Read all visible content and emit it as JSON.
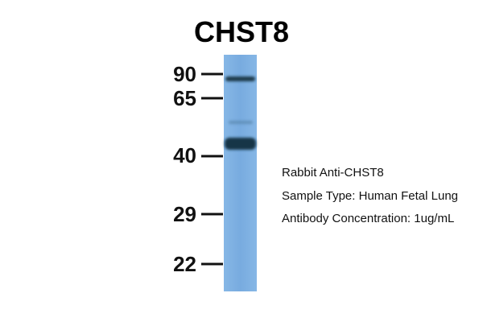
{
  "title": "CHST8",
  "markers": [
    "90",
    "65",
    "40",
    "29",
    "22"
  ],
  "annotations": [
    "Rabbit Anti-CHST8",
    "Sample Type: Human Fetal Lung",
    "Antibody Concentration: 1ug/mL"
  ]
}
